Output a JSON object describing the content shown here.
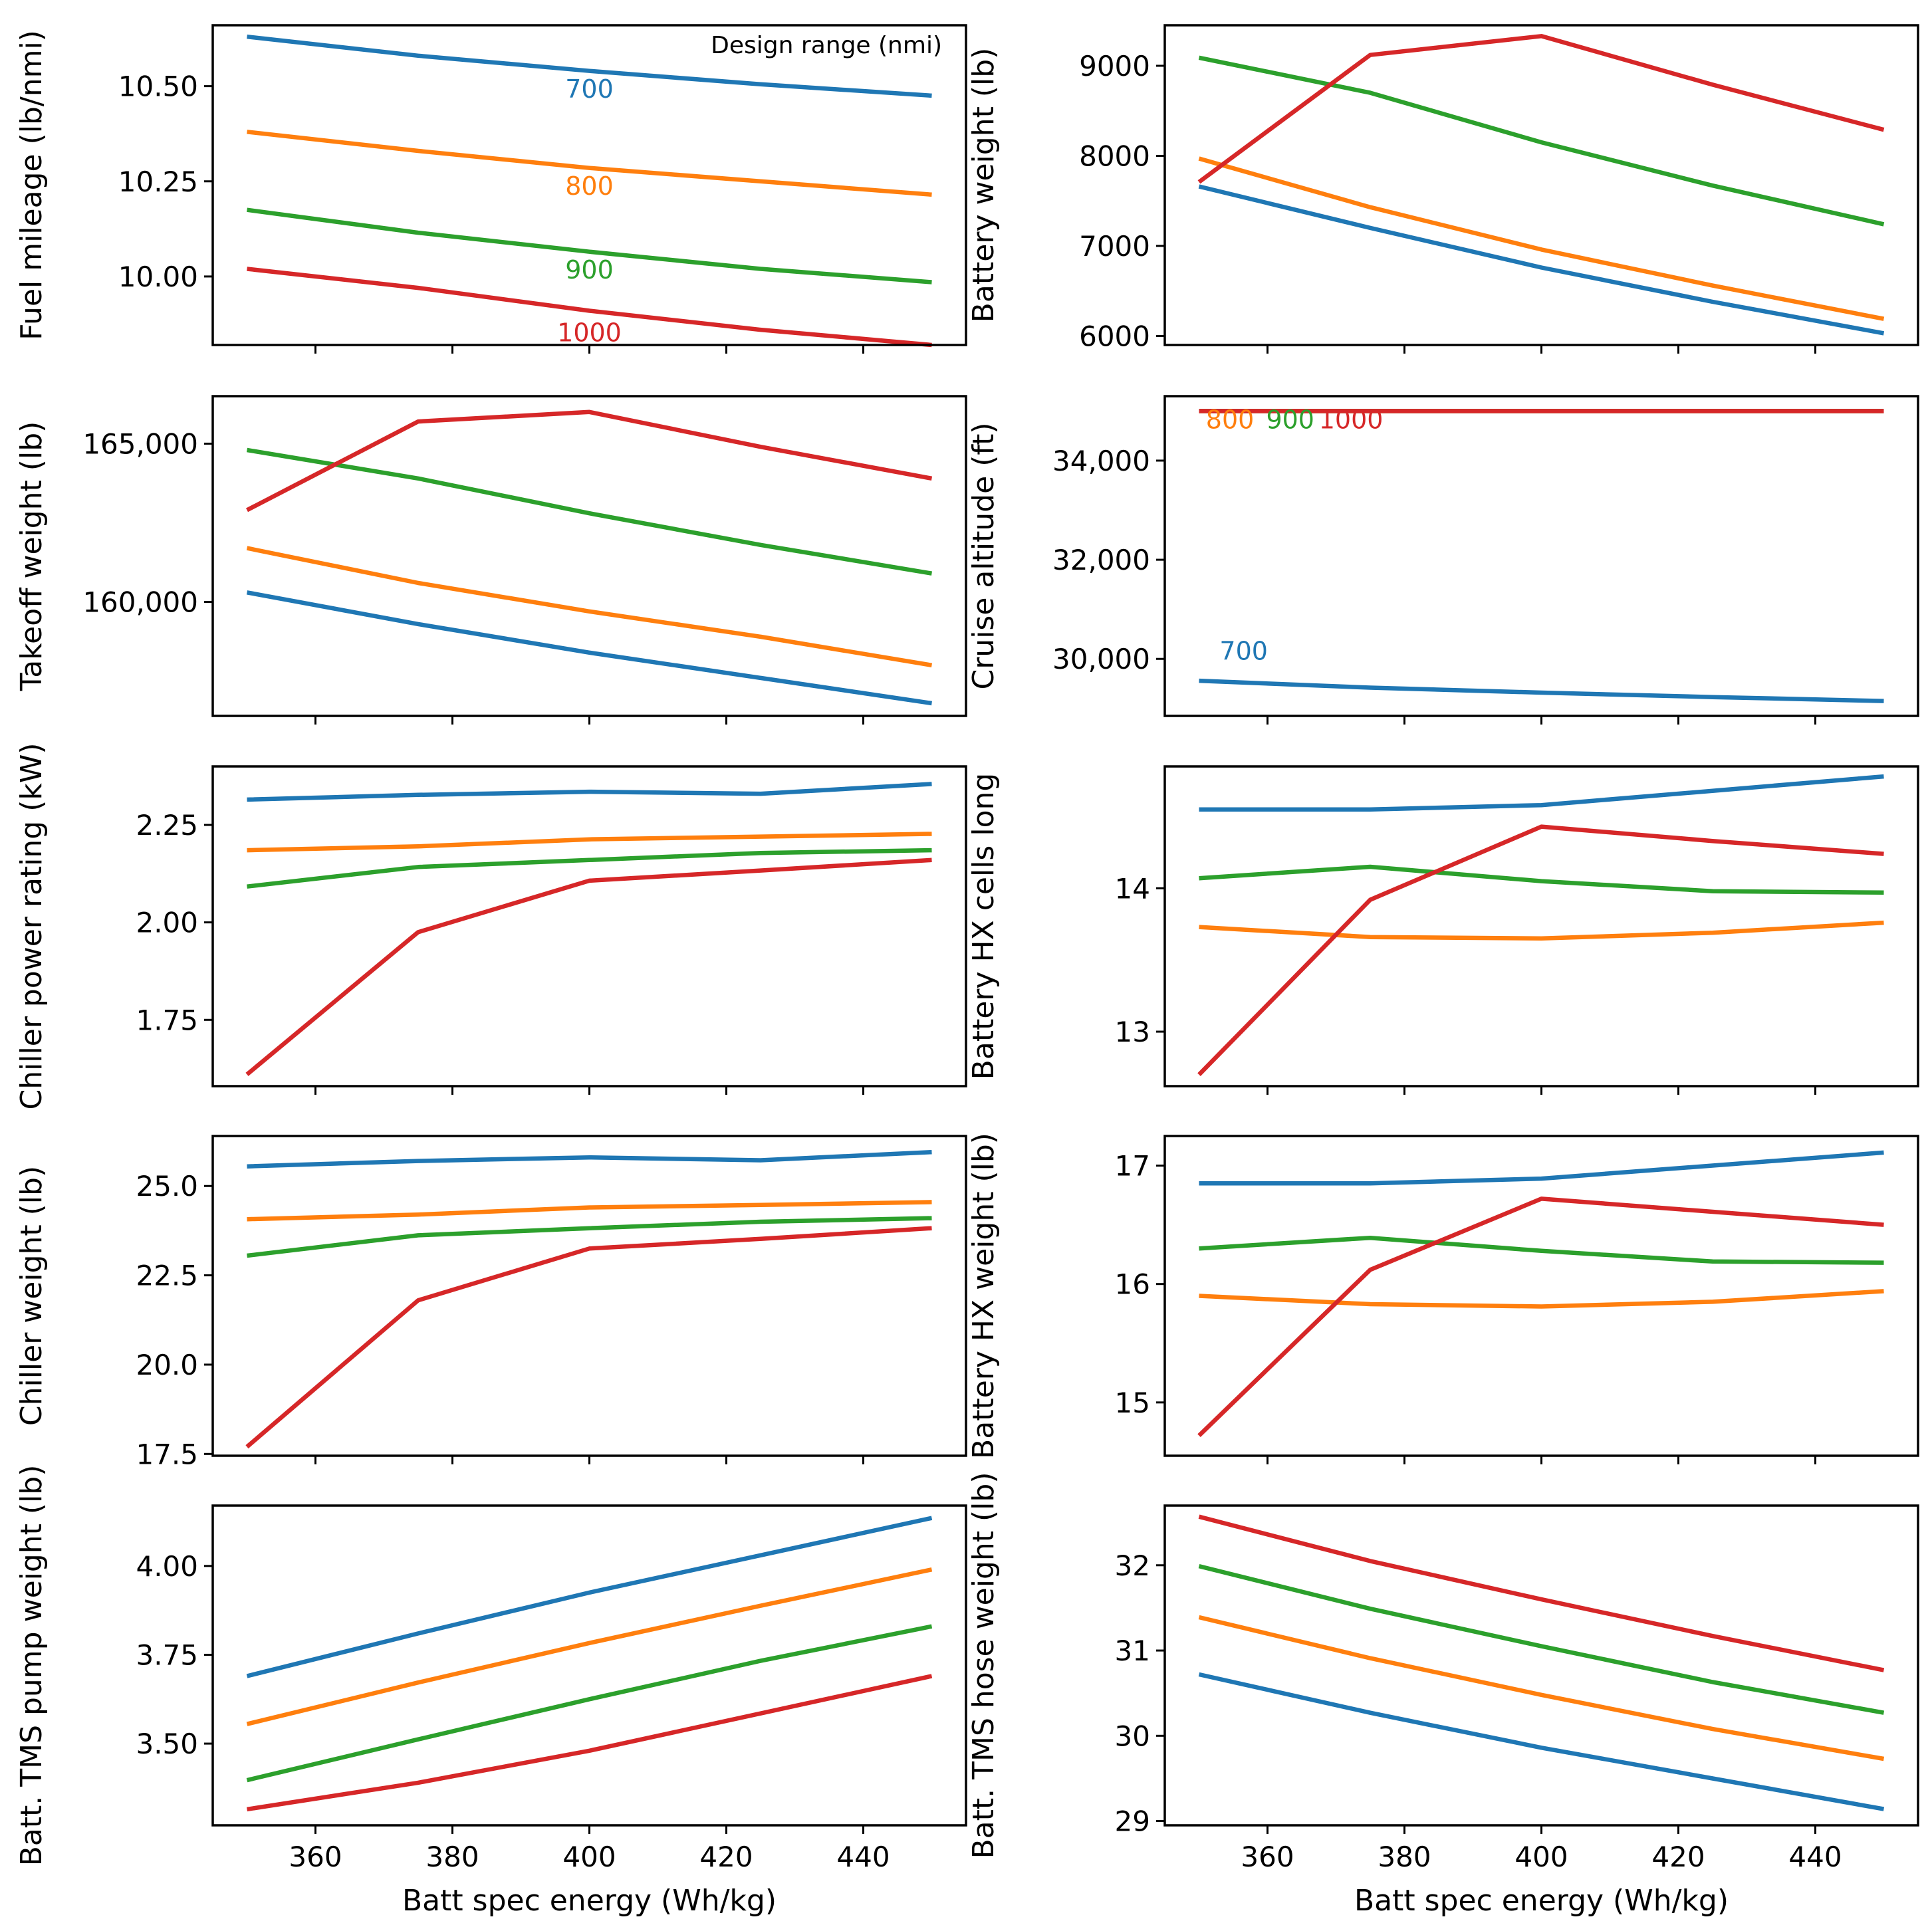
{
  "figure": {
    "legend_title": "Design range (nmi)",
    "x_label": "Batt spec energy (Wh/kg)",
    "series_colors": {
      "700": "#1f77b4",
      "800": "#ff7f0e",
      "900": "#2ca02c",
      "1000": "#d62728"
    }
  },
  "chart_data": [
    {
      "type": "line",
      "ylabel": "Fuel mileage (lb/nmi)",
      "xlim": [
        345,
        455
      ],
      "ylim": [
        9.82,
        10.66
      ],
      "xticks": [
        360,
        380,
        400,
        420,
        440
      ],
      "xtick_labels": [
        "",
        "",
        "",
        "",
        ""
      ],
      "yticks": [
        10.0,
        10.25,
        10.5
      ],
      "ytick_labels": [
        "10.00",
        "10.25",
        "10.50"
      ],
      "x": [
        350,
        375,
        400,
        425,
        450
      ],
      "series": [
        {
          "name": "700",
          "values": [
            10.63,
            10.58,
            10.54,
            10.505,
            10.475
          ]
        },
        {
          "name": "800",
          "values": [
            10.38,
            10.33,
            10.285,
            10.25,
            10.215
          ]
        },
        {
          "name": "900",
          "values": [
            10.175,
            10.115,
            10.065,
            10.02,
            9.985
          ]
        },
        {
          "name": "1000",
          "values": [
            10.02,
            9.97,
            9.91,
            9.86,
            9.82
          ]
        }
      ],
      "annotations": [
        {
          "text": "700",
          "series": "700",
          "x": 400,
          "y": 10.47
        },
        {
          "text": "800",
          "series": "800",
          "x": 400,
          "y": 10.215
        },
        {
          "text": "900",
          "series": "900",
          "x": 400,
          "y": 9.995
        },
        {
          "text": "1000",
          "series": "1000",
          "x": 400,
          "y": 9.83
        }
      ]
    },
    {
      "type": "line",
      "ylabel": "Battery weight (lb)",
      "xlim": [
        345,
        455
      ],
      "ylim": [
        5900,
        9450
      ],
      "xticks": [
        360,
        380,
        400,
        420,
        440
      ],
      "xtick_labels": [
        "",
        "",
        "",
        "",
        ""
      ],
      "yticks": [
        6000,
        7000,
        8000,
        9000
      ],
      "ytick_labels": [
        "6000",
        "7000",
        "8000",
        "9000"
      ],
      "x": [
        350,
        375,
        400,
        425,
        450
      ],
      "series": [
        {
          "name": "700",
          "values": [
            7660,
            7200,
            6760,
            6380,
            6030
          ]
        },
        {
          "name": "800",
          "values": [
            7970,
            7430,
            6960,
            6560,
            6190
          ]
        },
        {
          "name": "900",
          "values": [
            9090,
            8700,
            8150,
            7670,
            7240
          ]
        },
        {
          "name": "1000",
          "values": [
            7710,
            9120,
            9330,
            8790,
            8290
          ]
        }
      ]
    },
    {
      "type": "line",
      "ylabel": "Takeoff weight (lb)",
      "xlim": [
        345,
        455
      ],
      "ylim": [
        156400,
        166500
      ],
      "xticks": [
        360,
        380,
        400,
        420,
        440
      ],
      "xtick_labels": [
        "",
        "",
        "",
        "",
        ""
      ],
      "yticks": [
        160000,
        165000
      ],
      "ytick_labels": [
        "160,000",
        "165,000"
      ],
      "x": [
        350,
        375,
        400,
        425,
        450
      ],
      "series": [
        {
          "name": "700",
          "values": [
            160300,
            159300,
            158400,
            157600,
            156800
          ]
        },
        {
          "name": "800",
          "values": [
            161700,
            160600,
            159700,
            158900,
            158000
          ]
        },
        {
          "name": "900",
          "values": [
            164800,
            163900,
            162800,
            161800,
            160900
          ]
        },
        {
          "name": "1000",
          "values": [
            162900,
            165700,
            166000,
            164900,
            163900
          ]
        }
      ]
    },
    {
      "type": "line",
      "ylabel": "Cruise altitude (ft)",
      "xlim": [
        345,
        455
      ],
      "ylim": [
        28850,
        35300
      ],
      "xticks": [
        360,
        380,
        400,
        420,
        440
      ],
      "xtick_labels": [
        "",
        "",
        "",
        "",
        ""
      ],
      "yticks": [
        30000,
        32000,
        34000
      ],
      "ytick_labels": [
        "30,000",
        "32,000",
        "34,000"
      ],
      "x": [
        350,
        375,
        400,
        425,
        450
      ],
      "series": [
        {
          "name": "700",
          "values": [
            29560,
            29420,
            29320,
            29230,
            29150
          ]
        },
        {
          "name": "800",
          "values": [
            35000,
            35000,
            35000,
            35000,
            35000
          ]
        },
        {
          "name": "900",
          "values": [
            35000,
            35000,
            35000,
            35000,
            35000
          ]
        },
        {
          "name": "1000",
          "values": [
            35000,
            35000,
            35000,
            35000,
            35000
          ]
        }
      ],
      "annotations": [
        {
          "text": "800",
          "series": "800",
          "x": 351,
          "y": 34650
        },
        {
          "text": "900",
          "series": "900",
          "x": 359.8,
          "y": 34650
        },
        {
          "text": "1000",
          "series": "1000",
          "x": 367.5,
          "y": 34650
        },
        {
          "text": "700",
          "series": "700",
          "x": 353,
          "y": 29980
        }
      ]
    },
    {
      "type": "line",
      "ylabel": "Chiller power rating (kW)",
      "xlim": [
        345,
        455
      ],
      "ylim": [
        1.58,
        2.4
      ],
      "xticks": [
        360,
        380,
        400,
        420,
        440
      ],
      "xtick_labels": [
        "",
        "",
        "",
        "",
        ""
      ],
      "yticks": [
        1.75,
        2.0,
        2.25
      ],
      "ytick_labels": [
        "1.75",
        "2.00",
        "2.25"
      ],
      "x": [
        350,
        375,
        400,
        425,
        450
      ],
      "series": [
        {
          "name": "700",
          "values": [
            2.315,
            2.327,
            2.335,
            2.33,
            2.355
          ]
        },
        {
          "name": "800",
          "values": [
            2.185,
            2.195,
            2.213,
            2.22,
            2.227
          ]
        },
        {
          "name": "900",
          "values": [
            2.092,
            2.142,
            2.16,
            2.178,
            2.185
          ]
        },
        {
          "name": "1000",
          "values": [
            1.61,
            1.975,
            2.107,
            2.133,
            2.16
          ]
        }
      ]
    },
    {
      "type": "line",
      "ylabel": "Battery HX cells long",
      "xlim": [
        345,
        455
      ],
      "ylim": [
        12.62,
        14.85
      ],
      "xticks": [
        360,
        380,
        400,
        420,
        440
      ],
      "xtick_labels": [
        "",
        "",
        "",
        "",
        ""
      ],
      "yticks": [
        13,
        14
      ],
      "ytick_labels": [
        "13",
        "14"
      ],
      "x": [
        350,
        375,
        400,
        425,
        450
      ],
      "series": [
        {
          "name": "700",
          "values": [
            14.55,
            14.55,
            14.58,
            14.68,
            14.78
          ]
        },
        {
          "name": "800",
          "values": [
            13.73,
            13.66,
            13.65,
            13.69,
            13.76
          ]
        },
        {
          "name": "900",
          "values": [
            14.07,
            14.15,
            14.05,
            13.98,
            13.97
          ]
        },
        {
          "name": "1000",
          "values": [
            12.7,
            13.92,
            14.43,
            14.33,
            14.24
          ]
        }
      ]
    },
    {
      "type": "line",
      "ylabel": "Chiller weight (lb)",
      "xlim": [
        345,
        455
      ],
      "ylim": [
        17.45,
        26.4
      ],
      "xticks": [
        360,
        380,
        400,
        420,
        440
      ],
      "xtick_labels": [
        "",
        "",
        "",
        "",
        ""
      ],
      "yticks": [
        17.5,
        20.0,
        22.5,
        25.0
      ],
      "ytick_labels": [
        "17.5",
        "20.0",
        "22.5",
        "25.0"
      ],
      "x": [
        350,
        375,
        400,
        425,
        450
      ],
      "series": [
        {
          "name": "700",
          "values": [
            25.55,
            25.7,
            25.8,
            25.72,
            25.95
          ]
        },
        {
          "name": "800",
          "values": [
            24.07,
            24.2,
            24.4,
            24.47,
            24.55
          ]
        },
        {
          "name": "900",
          "values": [
            23.05,
            23.62,
            23.82,
            24.0,
            24.1
          ]
        },
        {
          "name": "1000",
          "values": [
            17.7,
            21.8,
            23.25,
            23.52,
            23.82
          ]
        }
      ]
    },
    {
      "type": "line",
      "ylabel": "Battery HX weight (lb)",
      "xlim": [
        345,
        455
      ],
      "ylim": [
        14.55,
        17.25
      ],
      "xticks": [
        360,
        380,
        400,
        420,
        440
      ],
      "xtick_labels": [
        "",
        "",
        "",
        "",
        ""
      ],
      "yticks": [
        15,
        16,
        17
      ],
      "ytick_labels": [
        "15",
        "16",
        "17"
      ],
      "x": [
        350,
        375,
        400,
        425,
        450
      ],
      "series": [
        {
          "name": "700",
          "values": [
            16.85,
            16.85,
            16.89,
            17.0,
            17.11
          ]
        },
        {
          "name": "800",
          "values": [
            15.9,
            15.83,
            15.81,
            15.85,
            15.94
          ]
        },
        {
          "name": "900",
          "values": [
            16.3,
            16.39,
            16.28,
            16.19,
            16.18
          ]
        },
        {
          "name": "1000",
          "values": [
            14.72,
            16.12,
            16.72,
            16.61,
            16.5
          ]
        }
      ]
    },
    {
      "type": "line",
      "ylabel": "Batt. TMS pump weight (lb)",
      "xlim": [
        345,
        455
      ],
      "ylim": [
        3.27,
        4.17
      ],
      "xticks": [
        360,
        380,
        400,
        420,
        440
      ],
      "xtick_labels": [
        "360",
        "380",
        "400",
        "420",
        "440"
      ],
      "yticks": [
        3.5,
        3.75,
        4.0
      ],
      "ytick_labels": [
        "3.50",
        "3.75",
        "4.00"
      ],
      "xlabel": "Batt spec energy (Wh/kg)",
      "x": [
        350,
        375,
        400,
        425,
        450
      ],
      "series": [
        {
          "name": "700",
          "values": [
            3.69,
            3.81,
            3.925,
            4.03,
            4.135
          ]
        },
        {
          "name": "800",
          "values": [
            3.555,
            3.672,
            3.783,
            3.888,
            3.99
          ]
        },
        {
          "name": "900",
          "values": [
            3.397,
            3.512,
            3.625,
            3.733,
            3.83
          ]
        },
        {
          "name": "1000",
          "values": [
            3.315,
            3.39,
            3.48,
            3.585,
            3.69
          ]
        }
      ]
    },
    {
      "type": "line",
      "ylabel": "Batt. TMS hose weight (lb)",
      "xlim": [
        345,
        455
      ],
      "ylim": [
        28.95,
        32.7
      ],
      "xticks": [
        360,
        380,
        400,
        420,
        440
      ],
      "xtick_labels": [
        "360",
        "380",
        "400",
        "420",
        "440"
      ],
      "yticks": [
        29,
        30,
        31,
        32
      ],
      "ytick_labels": [
        "29",
        "30",
        "31",
        "32"
      ],
      "xlabel": "Batt spec energy (Wh/kg)",
      "x": [
        350,
        375,
        400,
        425,
        450
      ],
      "series": [
        {
          "name": "700",
          "values": [
            30.72,
            30.27,
            29.86,
            29.5,
            29.14
          ]
        },
        {
          "name": "800",
          "values": [
            31.39,
            30.91,
            30.48,
            30.08,
            29.73
          ]
        },
        {
          "name": "900",
          "values": [
            31.99,
            31.49,
            31.05,
            30.63,
            30.27
          ]
        },
        {
          "name": "1000",
          "values": [
            32.57,
            32.05,
            31.6,
            31.17,
            30.77
          ]
        }
      ]
    }
  ]
}
